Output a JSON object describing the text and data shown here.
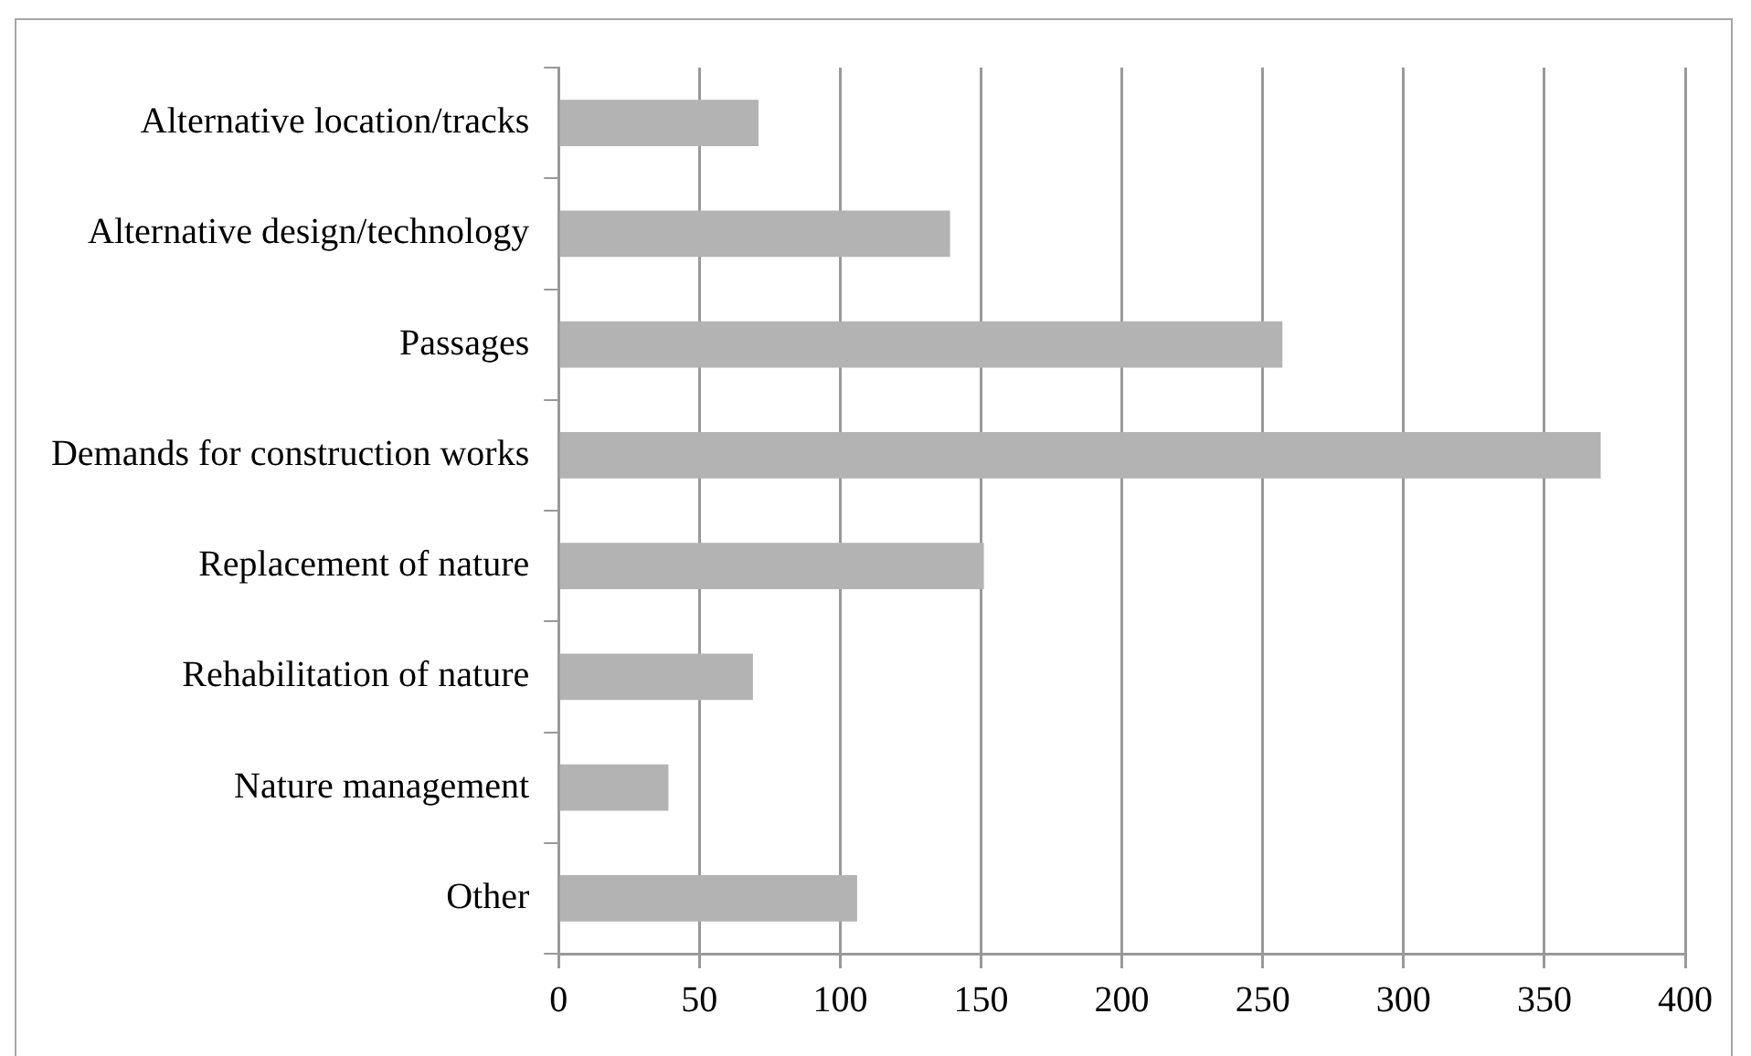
{
  "chart_data": {
    "type": "bar",
    "orientation": "horizontal",
    "categories": [
      "Alternative location/tracks",
      "Alternative design/technology",
      "Passages",
      "Demands for construction works",
      "Replacement of nature",
      "Rehabilitation of nature",
      "Nature management",
      "Other"
    ],
    "values": [
      71,
      139,
      257,
      370,
      151,
      69,
      39,
      106
    ],
    "color": "#b3b3b3",
    "xlim": [
      0,
      400
    ],
    "xticks": [
      0,
      50,
      100,
      150,
      200,
      250,
      300,
      350,
      400
    ],
    "grid": "x",
    "legend": false
  }
}
